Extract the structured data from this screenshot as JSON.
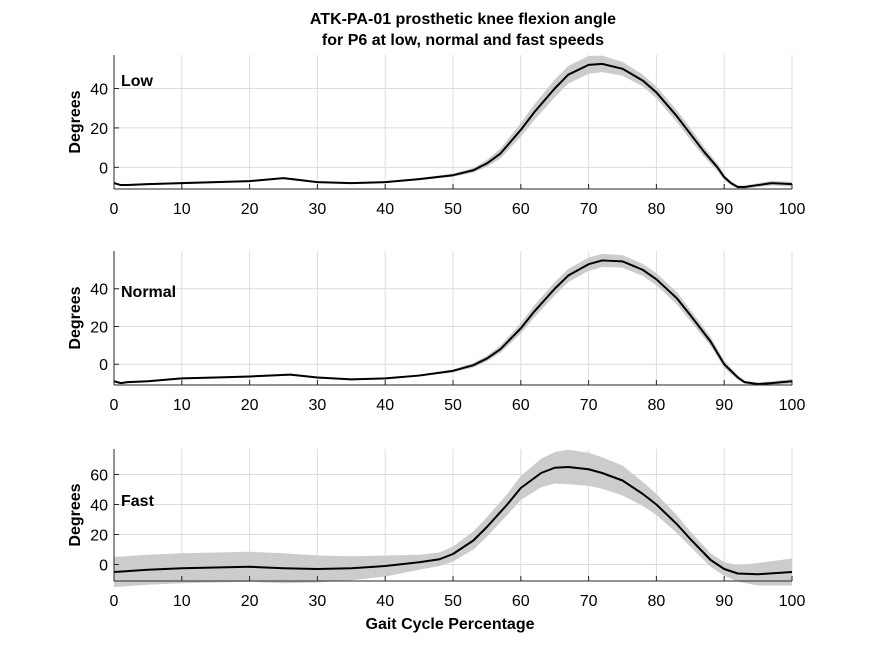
{
  "chart_data": {
    "title": [
      "ATK-PA-01 prosthetic knee flexion angle",
      "for P6 at low, normal and fast speeds"
    ],
    "xlabel": "Gait Cycle Percentage",
    "xlim": [
      0,
      100
    ],
    "x_ticks": [
      0,
      10,
      20,
      30,
      40,
      50,
      60,
      70,
      80,
      90,
      100
    ],
    "grid": true,
    "colors": {
      "mean_line": "#000000",
      "band": "#cccccc",
      "grid": "#dcdcdc"
    },
    "panels": [
      {
        "type": "area",
        "label": "Low",
        "ylabel": "Degrees",
        "ylim": [
          -11,
          57
        ],
        "y_ticks": [
          0,
          20,
          40
        ],
        "x": [
          0,
          1,
          2,
          5,
          10,
          15,
          20,
          25,
          30,
          35,
          40,
          45,
          50,
          53,
          55,
          57,
          60,
          62,
          65,
          67,
          70,
          72,
          75,
          78,
          80,
          83,
          85,
          87,
          89,
          90,
          91,
          92,
          93,
          95,
          97,
          100
        ],
        "mean": [
          -8,
          -9,
          -9,
          -8.5,
          -8,
          -7.5,
          -7,
          -5.5,
          -7.5,
          -8,
          -7.5,
          -6,
          -4,
          -1.5,
          2,
          7,
          19,
          28,
          40,
          47,
          52,
          52.5,
          50,
          44,
          38,
          26,
          17,
          8,
          0,
          -5,
          -8,
          -10,
          -10,
          -9,
          -8,
          -8.5
        ],
        "band": [
          0.5,
          0.5,
          0.5,
          0.5,
          0.5,
          0.5,
          0.5,
          0.5,
          0.5,
          0.5,
          0.5,
          0.5,
          0.8,
          1.2,
          1.8,
          2.5,
          3.5,
          4,
          4.5,
          4.5,
          4.5,
          4.2,
          3.5,
          3,
          3,
          3,
          3,
          2.5,
          2,
          1.5,
          1,
          0.8,
          0.8,
          1,
          1.2,
          1.2
        ]
      },
      {
        "type": "area",
        "label": "Normal",
        "ylabel": "Degrees",
        "ylim": [
          -11,
          60
        ],
        "y_ticks": [
          0,
          20,
          40
        ],
        "x": [
          0,
          1,
          2,
          5,
          10,
          15,
          20,
          26,
          30,
          35,
          40,
          45,
          50,
          53,
          55,
          57,
          60,
          62,
          65,
          67,
          70,
          72,
          75,
          78,
          80,
          83,
          85,
          88,
          90,
          92,
          93,
          95,
          97,
          100
        ],
        "mean": [
          -9,
          -10,
          -9.5,
          -9,
          -7.5,
          -7,
          -6.5,
          -5.5,
          -7,
          -8,
          -7.5,
          -6,
          -3.5,
          -0.5,
          3,
          8,
          19,
          28,
          40,
          47,
          53,
          55,
          54.5,
          50,
          45,
          35,
          26,
          12,
          0,
          -7,
          -9.5,
          -10.5,
          -10,
          -9
        ],
        "band": [
          0.5,
          0.5,
          0.5,
          0.5,
          0.5,
          0.5,
          0.5,
          0.5,
          0.5,
          0.5,
          0.5,
          0.5,
          0.8,
          1.2,
          1.5,
          2,
          2.8,
          3.2,
          3.5,
          3.5,
          3.5,
          3.5,
          3.3,
          3.2,
          3.2,
          3.2,
          3,
          2.5,
          2,
          1.2,
          0.8,
          0.8,
          1,
          1.2
        ]
      },
      {
        "type": "area",
        "label": "Fast",
        "ylabel": "Degrees",
        "ylim": [
          -11,
          77
        ],
        "y_ticks": [
          0,
          20,
          40,
          60
        ],
        "x": [
          0,
          5,
          10,
          15,
          20,
          25,
          30,
          35,
          40,
          45,
          48,
          50,
          53,
          55,
          58,
          60,
          63,
          65,
          67,
          70,
          72,
          75,
          78,
          80,
          83,
          85,
          88,
          90,
          92,
          95,
          100
        ],
        "mean": [
          -5,
          -3.5,
          -2.5,
          -2,
          -1.5,
          -2.5,
          -3,
          -2.5,
          -1,
          1.5,
          3.5,
          7,
          16,
          25,
          40,
          51,
          61,
          64.5,
          65,
          63.5,
          61,
          56,
          47,
          40,
          27,
          17,
          3,
          -3,
          -6,
          -6.5,
          -5
        ],
        "band": [
          10,
          10,
          10,
          10,
          10,
          10,
          9,
          8,
          7,
          5,
          4.5,
          5,
          6,
          6.5,
          7,
          8,
          9.5,
          10.5,
          11.5,
          11,
          10.5,
          10,
          8,
          7,
          6,
          5,
          4.5,
          4.5,
          5.5,
          7.5,
          9
        ]
      }
    ]
  }
}
